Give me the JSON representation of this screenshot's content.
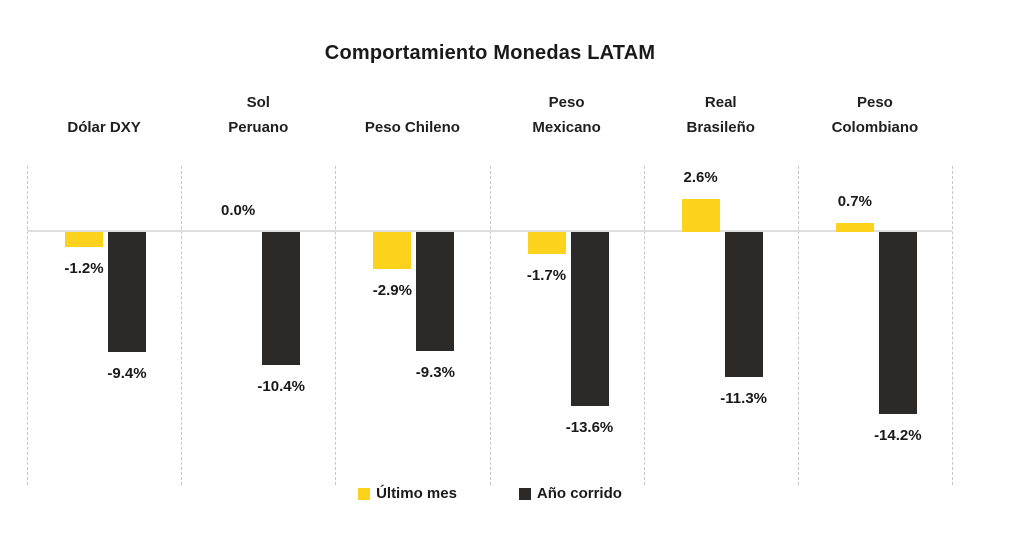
{
  "title": "Comportamiento Monedas LATAM",
  "chart_data": {
    "type": "bar",
    "title": "Comportamiento Monedas LATAM",
    "categories": [
      "Dólar DXY",
      "Sol\nPeruano",
      "Peso Chileno",
      "Peso\nMexicano",
      "Real\nBrasileño",
      "Peso\nColombiano"
    ],
    "series": [
      {
        "name": "Último mes",
        "color": "#FCD21C",
        "values": [
          -1.2,
          0.0,
          -2.9,
          -1.7,
          2.6,
          0.7
        ],
        "labels": [
          "-1.2%",
          "0.0%",
          "-2.9%",
          "-1.7%",
          "2.6%",
          "0.7%"
        ]
      },
      {
        "name": "Año corrido",
        "color": "#2B2A28",
        "values": [
          -9.4,
          -10.4,
          -9.3,
          -13.6,
          -11.3,
          -14.2
        ],
        "labels": [
          "-9.4%",
          "-10.4%",
          "-9.3%",
          "-13.6%",
          "-11.3%",
          "-14.2%"
        ]
      }
    ],
    "ylim": [
      -16,
      4
    ],
    "xlabel": "",
    "ylabel": "",
    "grid": "vertical-dashed-separators",
    "zero_line": true,
    "legend_position": "bottom-center",
    "value_labels": "outside-end"
  },
  "style": {
    "background": "#FFFFFF",
    "text_color": "#1A1A1A",
    "zero_line_color": "#DEDEDE",
    "separator_color": "#C6C6C6",
    "ultimo_mes_color": "#FCD21C",
    "ano_corrido_color": "#2B2A28"
  }
}
